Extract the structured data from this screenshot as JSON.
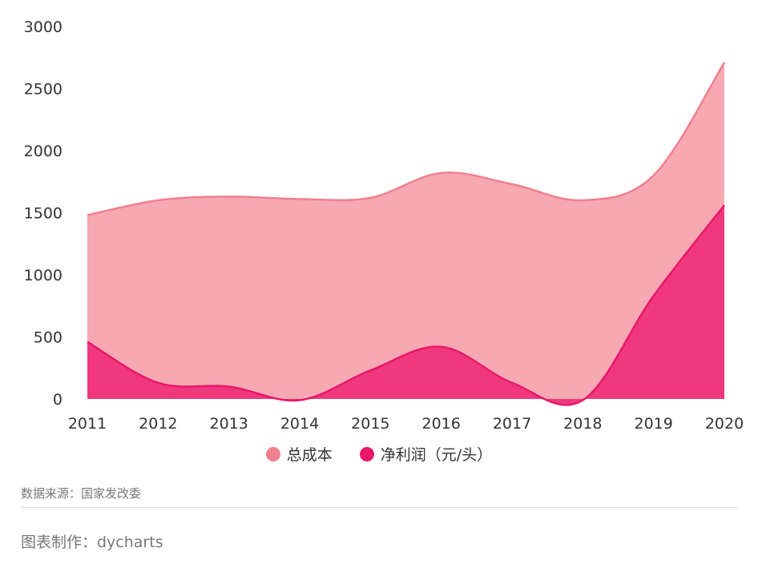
{
  "chart_data": {
    "type": "area",
    "categories": [
      "2011",
      "2012",
      "2013",
      "2014",
      "2015",
      "2016",
      "2017",
      "2018",
      "2019",
      "2020"
    ],
    "ylim": [
      0,
      3000
    ],
    "yticks": [
      0,
      500,
      1000,
      1500,
      2000,
      2500,
      3000
    ],
    "series": [
      {
        "name": "总成本",
        "color": "#f0808f",
        "fill": "#f6a8b3",
        "values": [
          1480,
          1600,
          1630,
          1610,
          1620,
          1820,
          1730,
          1600,
          1800,
          2710
        ]
      },
      {
        "name": "净利润（元/头）",
        "color": "#e8186a",
        "fill": "#f0397c",
        "values": [
          460,
          130,
          100,
          -10,
          230,
          420,
          130,
          -10,
          830,
          1560
        ]
      }
    ],
    "legend_position": "bottom",
    "grid": false
  },
  "footer": {
    "source": "数据来源：国家发改委",
    "credit": "图表制作：dycharts"
  }
}
